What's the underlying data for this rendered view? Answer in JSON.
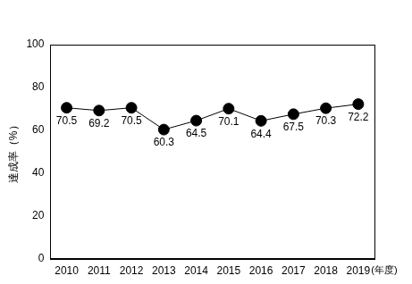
{
  "chart_data": {
    "type": "line",
    "y_label": "達成率（%）",
    "x_label": "(年度)",
    "categories": [
      "2010",
      "2011",
      "2012",
      "2013",
      "2014",
      "2015",
      "2016",
      "2017",
      "2018",
      "2019"
    ],
    "values": [
      70.5,
      69.2,
      70.5,
      60.3,
      64.5,
      70.1,
      64.4,
      67.5,
      70.3,
      72.2
    ],
    "color": "#000000",
    "marker": "circle",
    "ylim": [
      0,
      100
    ],
    "yticks": [
      0,
      20,
      40,
      60,
      80,
      100
    ],
    "grid": false,
    "data_labels": true
  }
}
